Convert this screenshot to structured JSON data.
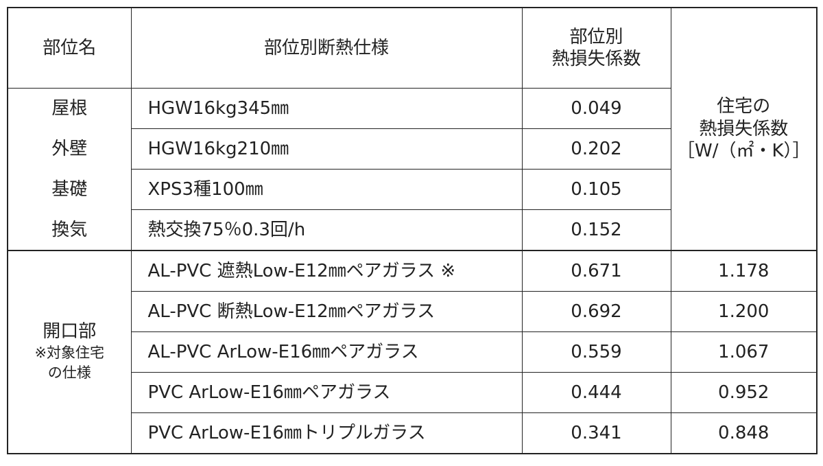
{
  "table": {
    "header": {
      "part": "部位名",
      "spec": "部位別断熱仕様",
      "coef": [
        "部位別",
        "熱損失係数"
      ],
      "house": [
        "住宅の",
        "熱損失係数",
        "［W/（㎡・K）］"
      ]
    },
    "parts": [
      {
        "part": "屋根",
        "spec": "HGW16kg345㎜",
        "coef": "0.049"
      },
      {
        "part": "外壁",
        "spec": "HGW16kg210㎜",
        "coef": "0.202"
      },
      {
        "part": "基礎",
        "spec": "XPS3種100㎜",
        "coef": "0.105"
      },
      {
        "part": "換気",
        "spec": "熱交換75％0.3回/h",
        "coef": "0.152"
      }
    ],
    "opening": {
      "label": "開口部",
      "note": [
        "※対象住宅",
        "の仕様"
      ],
      "rows": [
        {
          "spec": "AL-PVC 遮熱Low-E12㎜ペアガラス ※",
          "coef": "0.671",
          "house": "1.178"
        },
        {
          "spec": "AL-PVC 断熱Low-E12㎜ペアガラス",
          "coef": "0.692",
          "house": "1.200"
        },
        {
          "spec": "AL-PVC ArLow-E16㎜ペアガラス",
          "coef": "0.559",
          "house": "1.067"
        },
        {
          "spec": "PVC ArLow-E16㎜ペアガラス",
          "coef": "0.444",
          "house": "0.952"
        },
        {
          "spec": "PVC ArLow-E16㎜トリプルガラス",
          "coef": "0.341",
          "house": "0.848"
        }
      ]
    }
  }
}
